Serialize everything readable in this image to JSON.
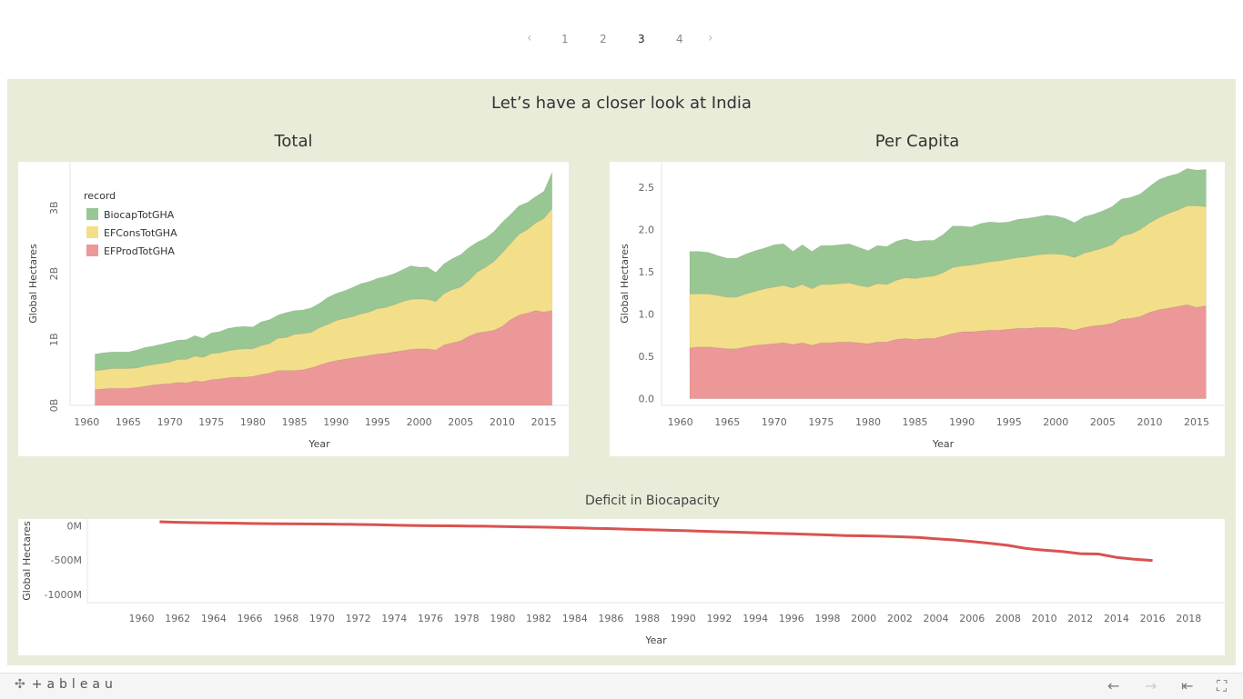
{
  "pager": {
    "prev": "‹",
    "next": "›",
    "pages": [
      "1",
      "2",
      "3",
      "4"
    ],
    "current": "3"
  },
  "dashboard": {
    "title": "Let’s have a closer look at India",
    "total_title": "Total",
    "percapita_title": "Per Capita",
    "deficit_title": "Deficit in Biocapacity"
  },
  "toolbar": {
    "logo": "+ableau",
    "logo_icon": "tableau-cross-icon",
    "undo": "←",
    "redo": "→",
    "revert": "⇤",
    "fullscreen": "⛶"
  },
  "colors": {
    "biocap": "#98c793",
    "cons": "#f3de8a",
    "prod": "#ed9898",
    "deficit": "#d9534f",
    "background": "#e8ecd9"
  },
  "chart_data": [
    {
      "type": "area",
      "title": "Total",
      "xlabel": "Year",
      "ylabel": "Global Hectares",
      "legend_title": "record",
      "legend_position": "top-left",
      "xlim": [
        1958,
        2018
      ],
      "ylim": [
        0,
        3.7
      ],
      "y_unit": "B",
      "x_ticks": [
        1960,
        1965,
        1970,
        1975,
        1980,
        1985,
        1990,
        1995,
        2000,
        2005,
        2010,
        2015
      ],
      "y_ticks": [
        {
          "v": 0,
          "label": "0B"
        },
        {
          "v": 1,
          "label": "1B"
        },
        {
          "v": 2,
          "label": "2B"
        },
        {
          "v": 3,
          "label": "3B"
        }
      ],
      "x": [
        1961,
        1962,
        1963,
        1964,
        1965,
        1966,
        1967,
        1968,
        1969,
        1970,
        1971,
        1972,
        1973,
        1974,
        1975,
        1976,
        1977,
        1978,
        1979,
        1980,
        1981,
        1982,
        1983,
        1984,
        1985,
        1986,
        1987,
        1988,
        1989,
        1990,
        1991,
        1992,
        1993,
        1994,
        1995,
        1996,
        1997,
        1998,
        1999,
        2000,
        2001,
        2002,
        2003,
        2004,
        2005,
        2006,
        2007,
        2008,
        2009,
        2010,
        2011,
        2012,
        2013,
        2014,
        2015,
        2016
      ],
      "series": [
        {
          "name": "EFProdTotGHA",
          "values": [
            0.24,
            0.25,
            0.26,
            0.26,
            0.26,
            0.27,
            0.29,
            0.31,
            0.32,
            0.33,
            0.35,
            0.34,
            0.37,
            0.36,
            0.39,
            0.4,
            0.42,
            0.43,
            0.43,
            0.44,
            0.47,
            0.49,
            0.53,
            0.53,
            0.53,
            0.54,
            0.57,
            0.61,
            0.65,
            0.68,
            0.7,
            0.72,
            0.74,
            0.76,
            0.78,
            0.79,
            0.81,
            0.83,
            0.85,
            0.86,
            0.86,
            0.84,
            0.92,
            0.95,
            0.98,
            1.05,
            1.1,
            1.12,
            1.14,
            1.2,
            1.3,
            1.37,
            1.4,
            1.44,
            1.42,
            1.44
          ]
        },
        {
          "name": "EFConsTotGHA",
          "values": [
            0.29,
            0.29,
            0.3,
            0.3,
            0.3,
            0.3,
            0.31,
            0.31,
            0.32,
            0.33,
            0.35,
            0.36,
            0.38,
            0.37,
            0.4,
            0.4,
            0.41,
            0.42,
            0.43,
            0.42,
            0.44,
            0.45,
            0.49,
            0.5,
            0.55,
            0.55,
            0.54,
            0.57,
            0.58,
            0.61,
            0.62,
            0.63,
            0.65,
            0.66,
            0.69,
            0.7,
            0.72,
            0.75,
            0.76,
            0.76,
            0.75,
            0.74,
            0.78,
            0.81,
            0.82,
            0.85,
            0.93,
            0.98,
            1.05,
            1.12,
            1.16,
            1.23,
            1.27,
            1.33,
            1.42,
            1.55
          ]
        },
        {
          "name": "BiocapTotGHA",
          "values": [
            0.25,
            0.26,
            0.25,
            0.25,
            0.25,
            0.27,
            0.28,
            0.28,
            0.29,
            0.3,
            0.29,
            0.3,
            0.31,
            0.29,
            0.31,
            0.32,
            0.34,
            0.34,
            0.34,
            0.33,
            0.36,
            0.36,
            0.35,
            0.38,
            0.36,
            0.36,
            0.37,
            0.37,
            0.41,
            0.41,
            0.42,
            0.44,
            0.46,
            0.46,
            0.46,
            0.47,
            0.47,
            0.48,
            0.51,
            0.48,
            0.49,
            0.44,
            0.45,
            0.47,
            0.49,
            0.5,
            0.45,
            0.44,
            0.45,
            0.46,
            0.44,
            0.43,
            0.41,
            0.4,
            0.41,
            0.55
          ]
        }
      ]
    },
    {
      "type": "area",
      "title": "Per Capita",
      "xlabel": "Year",
      "ylabel": "Global Hectares",
      "xlim": [
        1958,
        2018
      ],
      "ylim": [
        -0.08,
        2.8
      ],
      "x_ticks": [
        1960,
        1965,
        1970,
        1975,
        1980,
        1985,
        1990,
        1995,
        2000,
        2005,
        2010,
        2015
      ],
      "y_ticks": [
        {
          "v": 0,
          "label": "0.0"
        },
        {
          "v": 0.5,
          "label": "0.5"
        },
        {
          "v": 1,
          "label": "1.0"
        },
        {
          "v": 1.5,
          "label": "1.5"
        },
        {
          "v": 2,
          "label": "2.0"
        },
        {
          "v": 2.5,
          "label": "2.5"
        }
      ],
      "x": [
        1961,
        1962,
        1963,
        1964,
        1965,
        1966,
        1967,
        1968,
        1969,
        1970,
        1971,
        1972,
        1973,
        1974,
        1975,
        1976,
        1977,
        1978,
        1979,
        1980,
        1981,
        1982,
        1983,
        1984,
        1985,
        1986,
        1987,
        1988,
        1989,
        1990,
        1991,
        1992,
        1993,
        1994,
        1995,
        1996,
        1997,
        1998,
        1999,
        2000,
        2001,
        2002,
        2003,
        2004,
        2005,
        2006,
        2007,
        2008,
        2009,
        2010,
        2011,
        2012,
        2013,
        2014,
        2015,
        2016
      ],
      "series": [
        {
          "name": "EFProdTotGHA",
          "values": [
            0.6,
            0.61,
            0.61,
            0.6,
            0.59,
            0.59,
            0.61,
            0.63,
            0.64,
            0.65,
            0.66,
            0.64,
            0.66,
            0.63,
            0.66,
            0.66,
            0.67,
            0.67,
            0.66,
            0.65,
            0.67,
            0.67,
            0.7,
            0.71,
            0.7,
            0.71,
            0.71,
            0.74,
            0.77,
            0.79,
            0.79,
            0.8,
            0.81,
            0.81,
            0.82,
            0.83,
            0.83,
            0.84,
            0.84,
            0.84,
            0.83,
            0.81,
            0.84,
            0.86,
            0.87,
            0.89,
            0.94,
            0.95,
            0.97,
            1.02,
            1.05,
            1.07,
            1.09,
            1.11,
            1.08,
            1.1
          ]
        },
        {
          "name": "EFConsTotGHA",
          "values": [
            0.64,
            0.63,
            0.63,
            0.62,
            0.61,
            0.61,
            0.63,
            0.64,
            0.66,
            0.67,
            0.68,
            0.67,
            0.69,
            0.67,
            0.69,
            0.69,
            0.69,
            0.7,
            0.68,
            0.67,
            0.69,
            0.68,
            0.7,
            0.72,
            0.72,
            0.73,
            0.74,
            0.75,
            0.78,
            0.78,
            0.79,
            0.8,
            0.81,
            0.82,
            0.83,
            0.84,
            0.85,
            0.86,
            0.87,
            0.87,
            0.87,
            0.86,
            0.88,
            0.89,
            0.91,
            0.93,
            0.98,
            1.0,
            1.03,
            1.06,
            1.09,
            1.12,
            1.14,
            1.17,
            1.2,
            1.17
          ]
        },
        {
          "name": "BiocapTotGHA",
          "values": [
            0.5,
            0.5,
            0.49,
            0.47,
            0.46,
            0.46,
            0.47,
            0.48,
            0.48,
            0.5,
            0.49,
            0.43,
            0.47,
            0.44,
            0.46,
            0.46,
            0.46,
            0.46,
            0.45,
            0.43,
            0.45,
            0.45,
            0.46,
            0.46,
            0.44,
            0.43,
            0.42,
            0.45,
            0.49,
            0.47,
            0.45,
            0.47,
            0.47,
            0.45,
            0.44,
            0.45,
            0.45,
            0.45,
            0.46,
            0.45,
            0.43,
            0.41,
            0.43,
            0.43,
            0.44,
            0.45,
            0.44,
            0.43,
            0.42,
            0.43,
            0.45,
            0.44,
            0.43,
            0.44,
            0.42,
            0.44
          ]
        }
      ]
    },
    {
      "type": "line",
      "title": "Deficit in Biocapacity",
      "xlabel": "Year",
      "ylabel": "Global Hectares",
      "xlim": [
        1957,
        2020
      ],
      "ylim": [
        -1120,
        100
      ],
      "x_ticks": [
        1960,
        1962,
        1964,
        1966,
        1968,
        1970,
        1972,
        1974,
        1976,
        1978,
        1980,
        1982,
        1984,
        1986,
        1988,
        1990,
        1992,
        1994,
        1996,
        1998,
        2000,
        2002,
        2004,
        2006,
        2008,
        2010,
        2012,
        2014,
        2016,
        2018
      ],
      "y_ticks": [
        {
          "v": 0,
          "label": "0M"
        },
        {
          "v": -500,
          "label": "-500M"
        },
        {
          "v": -1000,
          "label": "-1000M"
        }
      ],
      "x": [
        1961,
        1962,
        1963,
        1964,
        1965,
        1966,
        1967,
        1968,
        1969,
        1970,
        1971,
        1972,
        1973,
        1974,
        1975,
        1976,
        1977,
        1978,
        1979,
        1980,
        1981,
        1982,
        1983,
        1984,
        1985,
        1986,
        1987,
        1988,
        1989,
        1990,
        1991,
        1992,
        1993,
        1994,
        1995,
        1996,
        1997,
        1998,
        1999,
        2000,
        2001,
        2002,
        2003,
        2004,
        2005,
        2006,
        2007,
        2008,
        2009,
        2010,
        2011,
        2012,
        2013,
        2014,
        2015,
        2016
      ],
      "series": [
        {
          "name": "Deficit",
          "values": [
            60,
            52,
            47,
            44,
            40,
            35,
            32,
            30,
            28,
            27,
            24,
            20,
            16,
            10,
            6,
            2,
            0,
            -2,
            -5,
            -10,
            -14,
            -18,
            -23,
            -28,
            -35,
            -40,
            -48,
            -55,
            -62,
            -70,
            -78,
            -86,
            -92,
            -100,
            -108,
            -115,
            -124,
            -132,
            -142,
            -145,
            -150,
            -158,
            -168,
            -188,
            -205,
            -228,
            -255,
            -285,
            -330,
            -355,
            -375,
            -405,
            -410,
            -460,
            -488,
            -505
          ]
        }
      ]
    }
  ]
}
